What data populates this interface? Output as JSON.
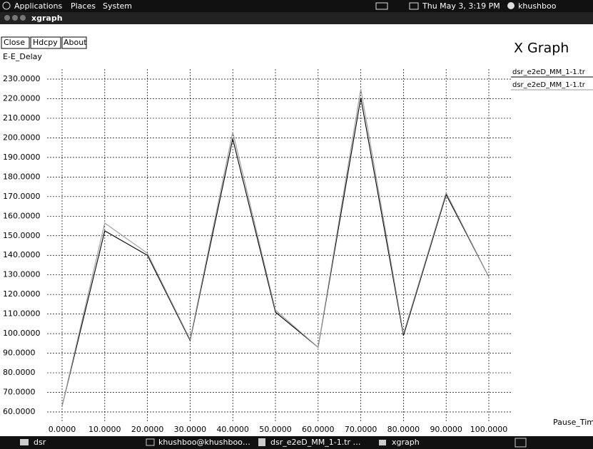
{
  "top_panel": {
    "menus": [
      "Applications",
      "Places",
      "System"
    ],
    "clock": "Thu May 3, 3:19 PM",
    "user": "khushboo"
  },
  "window": {
    "title": "xgraph",
    "buttons": [
      "Close",
      "Hdcpy",
      "About"
    ]
  },
  "chart_data": {
    "type": "line",
    "title": "X Graph",
    "y_label": "E-E_Delay",
    "x_label": "Pause_Time",
    "x": [
      0,
      10,
      20,
      30,
      40,
      50,
      60,
      70,
      80,
      90,
      100
    ],
    "series": [
      {
        "name": "dsr_e2eD_MM_1-1.tr",
        "color": "#000000",
        "values": [
          63,
          152.5,
          140,
          96.5,
          199.5,
          111,
          93,
          220.5,
          99,
          171,
          129
        ]
      },
      {
        "name": "dsr_e2eD_MM_1-1.tr",
        "color": "#9a9a9a",
        "values": [
          63,
          156.5,
          141,
          97,
          203,
          112,
          93,
          225,
          100,
          172,
          129
        ]
      }
    ],
    "xlim": [
      0,
      100
    ],
    "ylim": [
      60,
      230
    ],
    "xticks": [
      {
        "value": 0,
        "label": "0.0000"
      },
      {
        "value": 10,
        "label": "10.0000"
      },
      {
        "value": 20,
        "label": "20.0000"
      },
      {
        "value": 30,
        "label": "30.0000"
      },
      {
        "value": 40,
        "label": "40.0000"
      },
      {
        "value": 50,
        "label": "50.0000"
      },
      {
        "value": 60,
        "label": "60.0000"
      },
      {
        "value": 70,
        "label": "70.0000"
      },
      {
        "value": 80,
        "label": "80.0000"
      },
      {
        "value": 90,
        "label": "90.0000"
      },
      {
        "value": 100,
        "label": "100.0000"
      }
    ],
    "yticks": [
      {
        "value": 60,
        "label": "60.0000"
      },
      {
        "value": 70,
        "label": "70.0000"
      },
      {
        "value": 80,
        "label": "80.0000"
      },
      {
        "value": 90,
        "label": "90.0000"
      },
      {
        "value": 100,
        "label": "100.0000"
      },
      {
        "value": 110,
        "label": "110.0000"
      },
      {
        "value": 120,
        "label": "120.0000"
      },
      {
        "value": 130,
        "label": "130.0000"
      },
      {
        "value": 140,
        "label": "140.0000"
      },
      {
        "value": 150,
        "label": "150.0000"
      },
      {
        "value": 160,
        "label": "160.0000"
      },
      {
        "value": 170,
        "label": "170.0000"
      },
      {
        "value": 180,
        "label": "180.0000"
      },
      {
        "value": 190,
        "label": "190.0000"
      },
      {
        "value": 200,
        "label": "200.0000"
      },
      {
        "value": 210,
        "label": "210.0000"
      },
      {
        "value": 220,
        "label": "220.0000"
      },
      {
        "value": 230,
        "label": "230.0000"
      }
    ],
    "grid": true
  },
  "taskbar": {
    "items": [
      "dsr",
      "khushboo@khushboo…",
      "dsr_e2eD_MM_1-1.tr …",
      "xgraph"
    ]
  }
}
